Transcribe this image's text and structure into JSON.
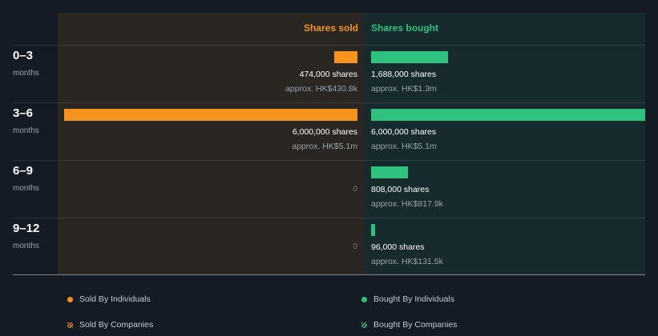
{
  "chart_data": {
    "type": "bar",
    "orientation": "horizontal-diverging",
    "columns": {
      "sold": "Shares sold",
      "bought": "Shares bought"
    },
    "categories": [
      {
        "label": "0–3",
        "unit": "months"
      },
      {
        "label": "3–6",
        "unit": "months"
      },
      {
        "label": "6–9",
        "unit": "months"
      },
      {
        "label": "9–12",
        "unit": "months"
      }
    ],
    "series": [
      {
        "name": "Shares sold",
        "values": [
          474000,
          6000000,
          0,
          0
        ],
        "shares_text": [
          "474,000 shares",
          "6,000,000 shares",
          "0",
          "0"
        ],
        "approx_text": [
          "approx. HK$430.8k",
          "approx. HK$5.1m",
          "",
          ""
        ],
        "color": "#f5931e"
      },
      {
        "name": "Shares bought",
        "values": [
          1688000,
          6000000,
          808000,
          96000
        ],
        "shares_text": [
          "1,688,000 shares",
          "6,000,000 shares",
          "808,000 shares",
          "96,000 shares"
        ],
        "approx_text": [
          "approx. HK$1.3m",
          "approx. HK$5.1m",
          "approx. HK$817.9k",
          "approx. HK$131.5k"
        ],
        "color": "#2ec27e"
      }
    ],
    "max": 6000000,
    "legend": [
      {
        "label": "Sold By Individuals",
        "style": "dot",
        "color": "#f5931e"
      },
      {
        "label": "Bought By Individuals",
        "style": "dot",
        "color": "#2ec27e"
      },
      {
        "label": "Sold By Companies",
        "style": "hatch",
        "color": "#f5931e"
      },
      {
        "label": "Bought By Companies",
        "style": "hatch",
        "color": "#2ec27e"
      }
    ]
  }
}
